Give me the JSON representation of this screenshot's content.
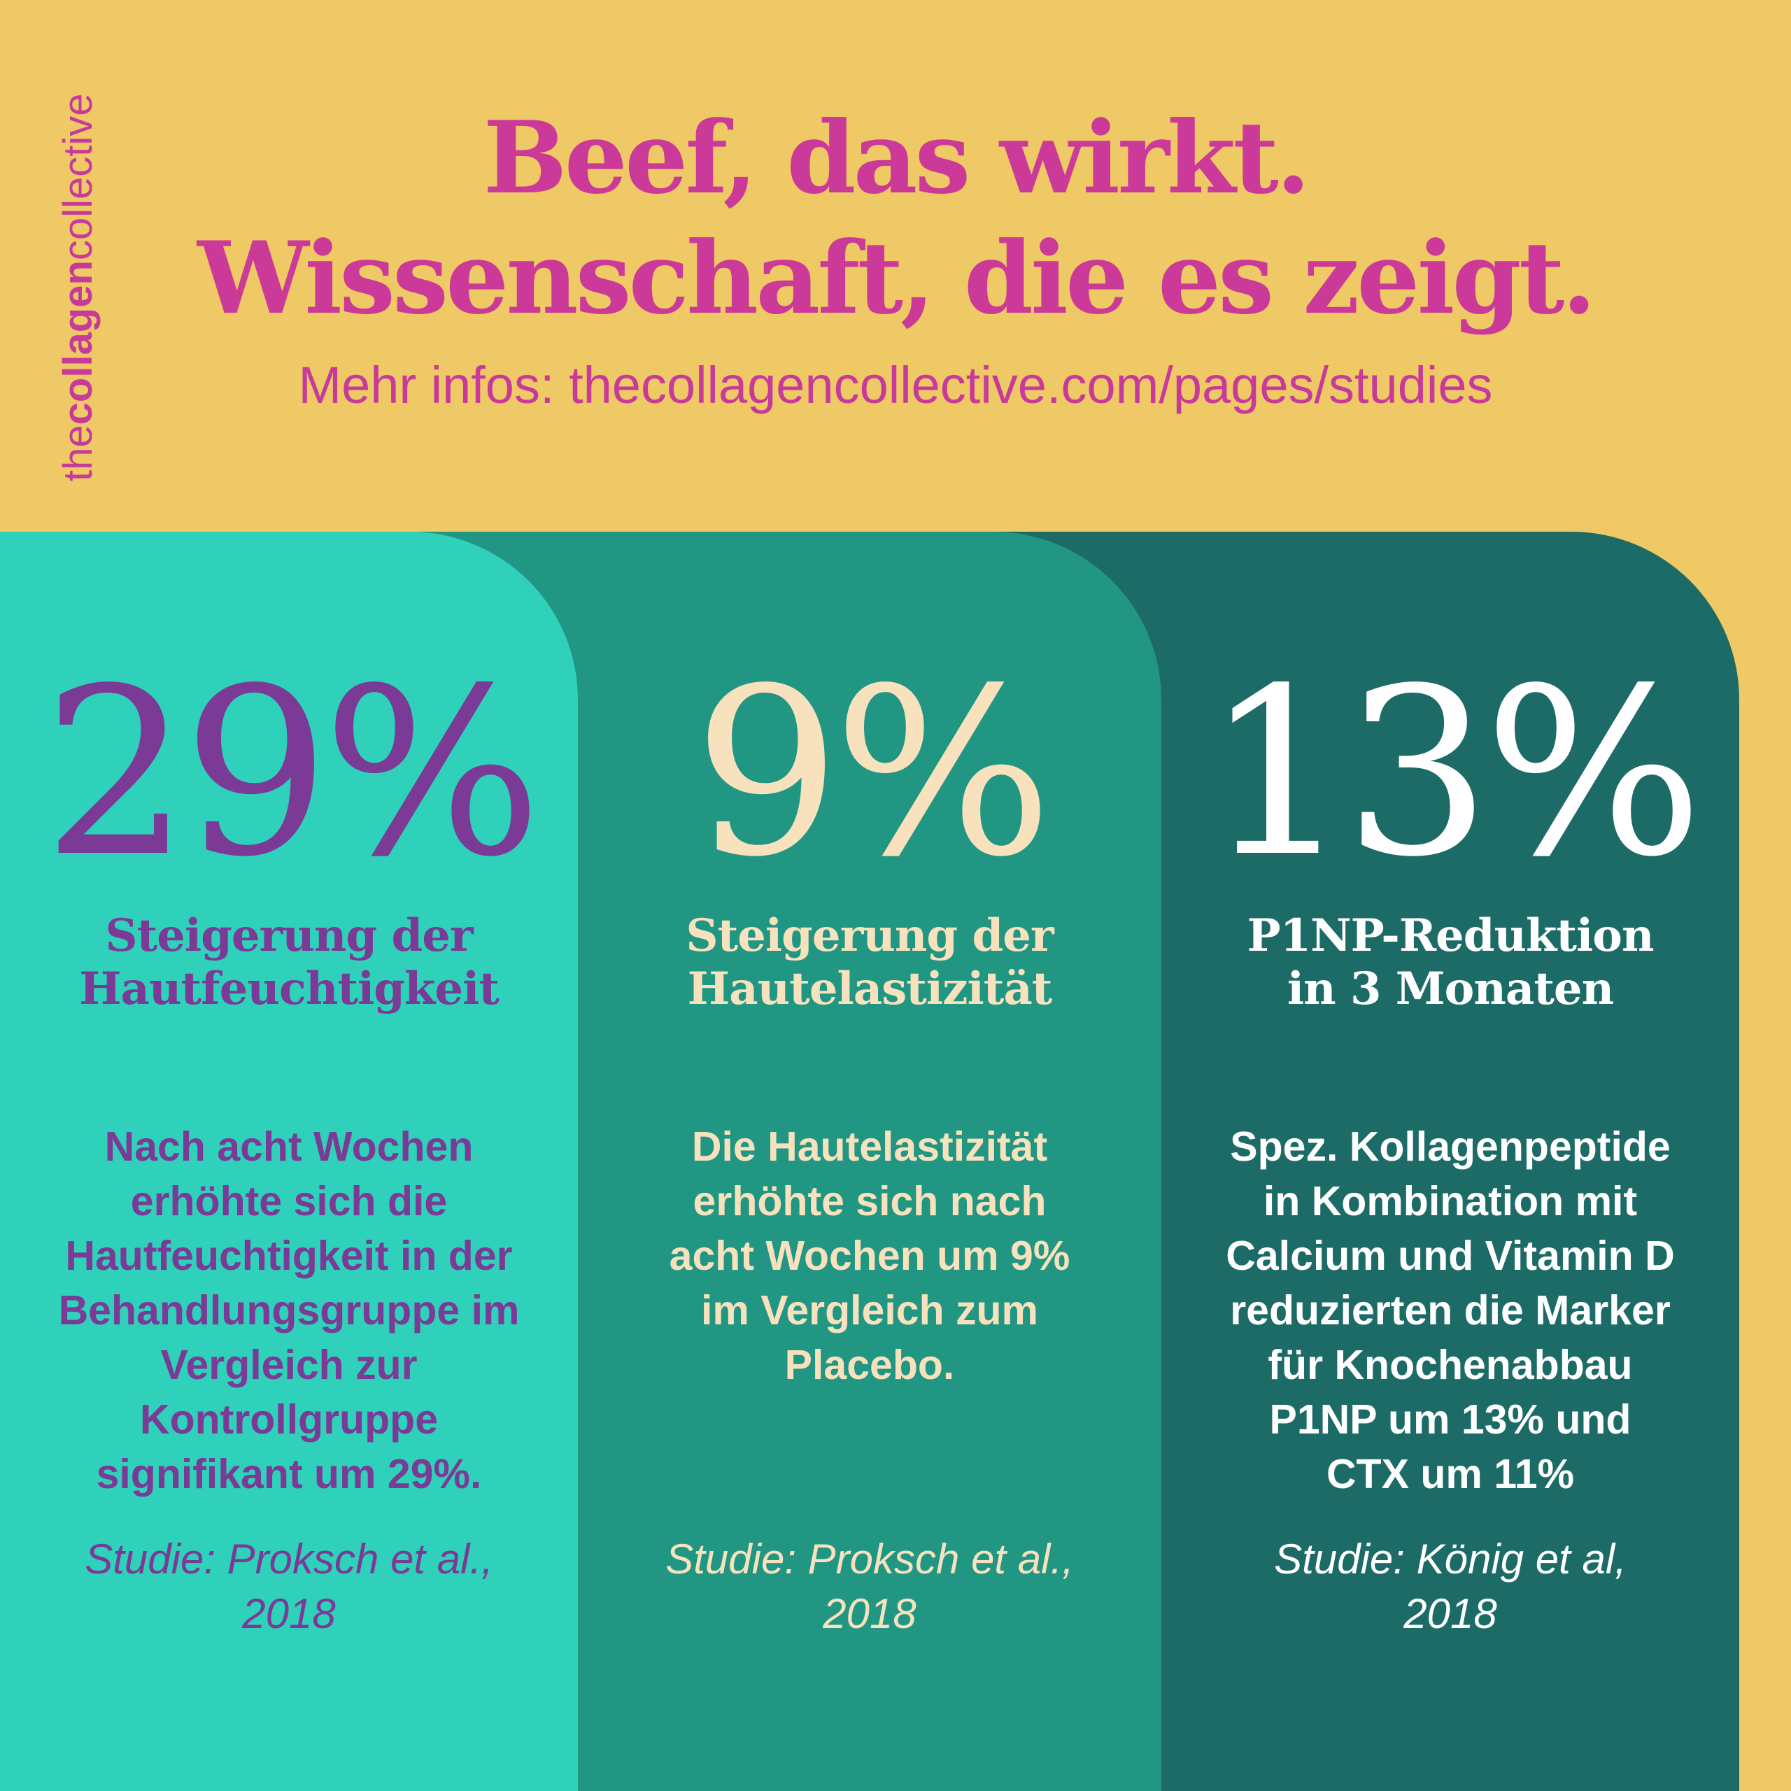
{
  "brand": {
    "prefix": "the",
    "bold": "collagen",
    "suffix": "collective"
  },
  "headline": {
    "line1": "Beef, das wirkt.",
    "line2": "Wissenschaft, die es zeigt."
  },
  "subline": "Mehr infos: thecollagencollective.com/pages/studies",
  "colors": {
    "background": "#EEC966",
    "headline": "#CB3A98",
    "panel1_bg": "#2FD1BA",
    "panel2_bg": "#219683",
    "panel3_bg": "#1C6B67",
    "panel1_text": "#7A3A96",
    "panel2_text": "#F8E2BE",
    "panel3_text": "#FFFFFF"
  },
  "panels": [
    {
      "value": "29%",
      "label": "Steigerung der\nHautfeuchtigkeit",
      "description": "Nach acht Wochen\nerhöhte sich die\nHautfeuchtigkeit in der\nBehandlungsgruppe im\nVergleich zur\nKontrollgruppe\nsignifikant um 29%.",
      "source": "Studie: Proksch et al.,\n2018"
    },
    {
      "value": "9%",
      "label": "Steigerung der\nHautelastizität",
      "description": "Die Hautelastizität\nerhöhte sich nach\nacht Wochen um 9%\nim Vergleich zum\nPlacebo.",
      "source": "Studie: Proksch et al.,\n2018"
    },
    {
      "value": "13%",
      "label": "P1NP-Reduktion\nin 3 Monaten",
      "description": "Spez. Kollagenpeptide\nin Kombination mit\nCalcium und Vitamin D\nreduzierten die Marker\nfür Knochenabbau\nP1NP um 13% und\nCTX um 11%",
      "source": "Studie: König et al,\n2018"
    }
  ]
}
